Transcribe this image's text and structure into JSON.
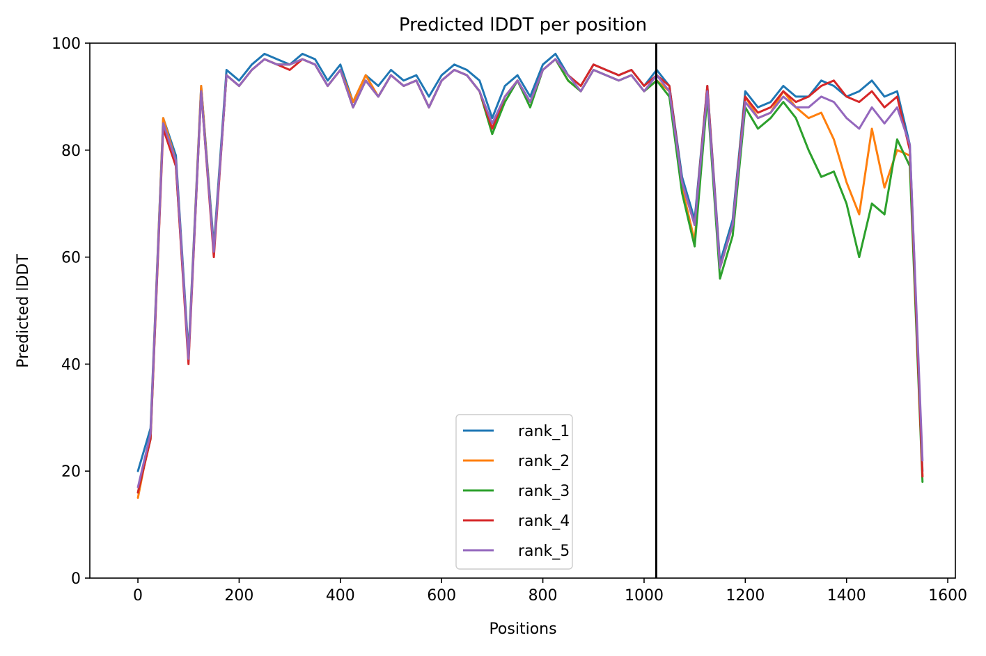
{
  "chart_data": {
    "type": "line",
    "title": "Predicted lDDT per position",
    "xlabel": "Positions",
    "ylabel": "Predicted lDDT",
    "xlim": [
      -95,
      1615
    ],
    "ylim": [
      0,
      100
    ],
    "xticks": [
      0,
      200,
      400,
      600,
      800,
      1000,
      1200,
      1400,
      1600
    ],
    "yticks": [
      0,
      20,
      40,
      60,
      80,
      100
    ],
    "grid": false,
    "legend_position": "lower center",
    "separator_x": 1024,
    "separator_color": "#000000",
    "x_step": 25,
    "series": [
      {
        "name": "rank_1",
        "color": "#1f77b4",
        "values": [
          20,
          28,
          86,
          79,
          42,
          92,
          62,
          95,
          93,
          96,
          98,
          97,
          96,
          98,
          97,
          93,
          96,
          89,
          94,
          92,
          95,
          93,
          94,
          90,
          94,
          96,
          95,
          93,
          86,
          92,
          94,
          90,
          96,
          98,
          94,
          92,
          96,
          95,
          94,
          95,
          92,
          95,
          92,
          75,
          67,
          92,
          59,
          67,
          91,
          88,
          89,
          92,
          90,
          90,
          93,
          92,
          90,
          91,
          93,
          90,
          91,
          81,
          20
        ]
      },
      {
        "name": "rank_2",
        "color": "#ff7f0e",
        "values": [
          15,
          27,
          86,
          78,
          41,
          92,
          61,
          94,
          92,
          95,
          97,
          96,
          96,
          97,
          96,
          92,
          95,
          89,
          94,
          90,
          94,
          92,
          93,
          88,
          93,
          95,
          94,
          91,
          84,
          90,
          93,
          89,
          95,
          97,
          93,
          91,
          95,
          94,
          93,
          94,
          91,
          93,
          91,
          73,
          63,
          91,
          58,
          66,
          90,
          86,
          87,
          91,
          88,
          86,
          87,
          82,
          74,
          68,
          84,
          73,
          80,
          79,
          19
        ]
      },
      {
        "name": "rank_3",
        "color": "#2ca02c",
        "values": [
          16,
          26,
          85,
          77,
          41,
          91,
          61,
          94,
          92,
          95,
          97,
          96,
          96,
          97,
          96,
          92,
          95,
          88,
          93,
          90,
          94,
          92,
          93,
          88,
          93,
          95,
          94,
          91,
          83,
          89,
          93,
          88,
          95,
          97,
          93,
          91,
          95,
          94,
          93,
          94,
          91,
          93,
          90,
          72,
          62,
          90,
          56,
          64,
          88,
          84,
          86,
          89,
          86,
          80,
          75,
          76,
          70,
          60,
          70,
          68,
          82,
          77,
          18
        ]
      },
      {
        "name": "rank_4",
        "color": "#d62728",
        "values": [
          16,
          26,
          84,
          77,
          40,
          91,
          60,
          94,
          92,
          95,
          97,
          96,
          95,
          97,
          96,
          92,
          95,
          88,
          93,
          90,
          94,
          92,
          93,
          88,
          93,
          95,
          94,
          91,
          84,
          90,
          93,
          89,
          95,
          97,
          94,
          92,
          96,
          95,
          94,
          95,
          92,
          94,
          92,
          74,
          66,
          92,
          58,
          66,
          90,
          87,
          88,
          91,
          89,
          90,
          92,
          93,
          90,
          89,
          91,
          88,
          90,
          80,
          19
        ]
      },
      {
        "name": "rank_5",
        "color": "#9467bd",
        "values": [
          17,
          27,
          85,
          78,
          41,
          91,
          61,
          94,
          92,
          95,
          97,
          96,
          96,
          97,
          96,
          92,
          95,
          88,
          93,
          90,
          94,
          92,
          93,
          88,
          93,
          95,
          94,
          91,
          85,
          90,
          93,
          89,
          95,
          97,
          94,
          91,
          95,
          94,
          93,
          94,
          91,
          94,
          91,
          74,
          66,
          91,
          58,
          66,
          89,
          86,
          87,
          90,
          88,
          88,
          90,
          89,
          86,
          84,
          88,
          85,
          88,
          81,
          22
        ]
      }
    ]
  }
}
